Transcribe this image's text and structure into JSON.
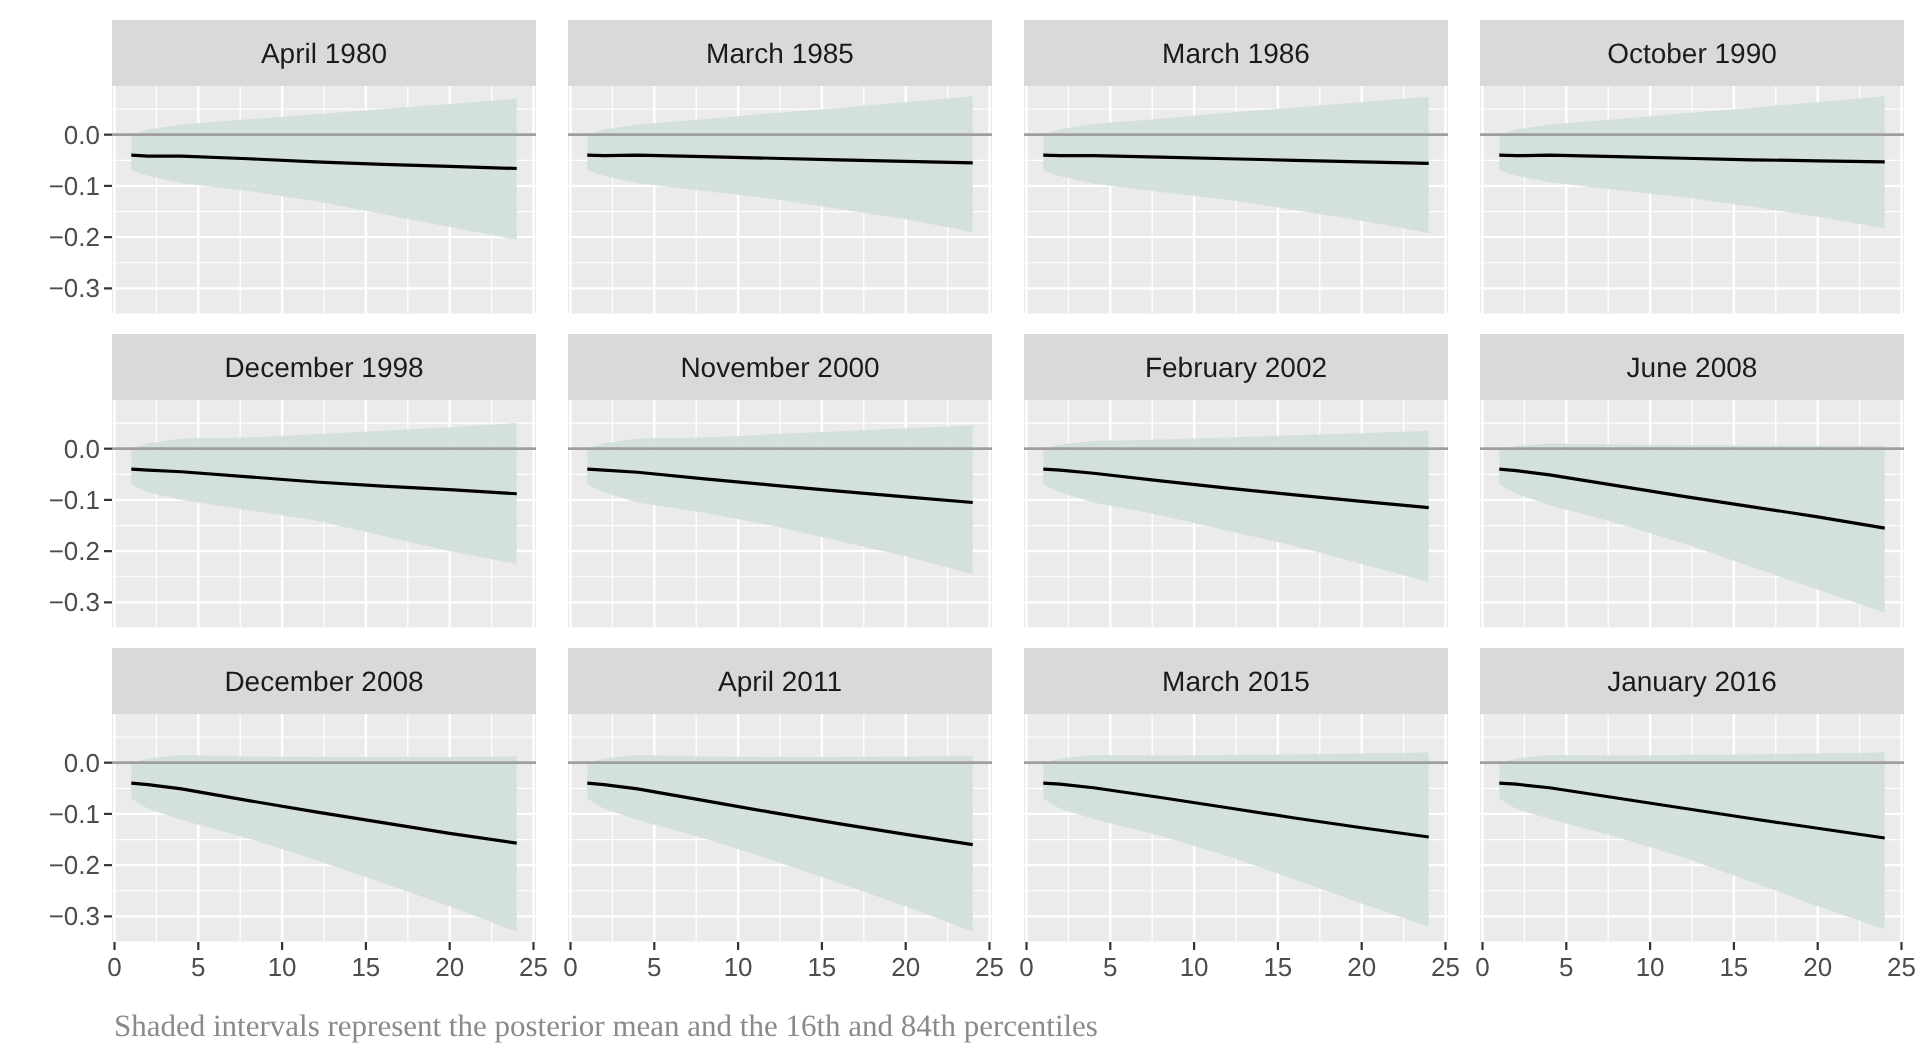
{
  "chart_data": [
    {
      "type": "line",
      "title": "April 1980",
      "x": [
        1,
        2,
        4,
        8,
        12,
        16,
        20,
        24
      ],
      "xlim": [
        -0.15,
        25.15
      ],
      "ylim": [
        -0.35,
        0.095
      ],
      "xticks": [
        0,
        5,
        10,
        15,
        20,
        25
      ],
      "yticks": [
        {
          "value": 0,
          "label": "0.0"
        },
        {
          "value": -0.1,
          "label": "−0.1"
        },
        {
          "value": -0.2,
          "label": "−0.2"
        },
        {
          "value": -0.3,
          "label": "−0.3"
        }
      ],
      "grid": true,
      "tick_labels": "y",
      "ref_lines": [
        {
          "axis": "y",
          "value": 0,
          "color": "#9e9e9e"
        }
      ],
      "annotations": [
        "Shaded intervals represent the posterior mean and the 16th and 84th percentiles"
      ],
      "series": [
        {
          "color": "#000000",
          "values": [
            -0.04,
            -0.042,
            -0.042,
            -0.047,
            -0.053,
            -0.058,
            -0.062,
            -0.066
          ],
          "lower": [
            -0.07,
            -0.08,
            -0.095,
            -0.11,
            -0.13,
            -0.155,
            -0.18,
            -0.205
          ],
          "upper": [
            0,
            0.01,
            0.02,
            0.03,
            0.04,
            0.05,
            0.06,
            0.07
          ]
        }
      ]
    },
    {
      "type": "line",
      "title": "March 1985",
      "x": [
        1,
        2,
        4,
        8,
        12,
        16,
        20,
        24
      ],
      "xlim": [
        -0.15,
        25.15
      ],
      "ylim": [
        -0.35,
        0.095
      ],
      "xticks": [
        0,
        5,
        10,
        15,
        20,
        25
      ],
      "yticks": [
        0,
        -0.1,
        -0.2,
        -0.3
      ],
      "grid": true,
      "tick_labels": false,
      "ref_lines": [
        {
          "axis": "y",
          "value": 0,
          "color": "#9e9e9e"
        }
      ],
      "series": [
        {
          "color": "#000000",
          "values": [
            -0.04,
            -0.041,
            -0.04,
            -0.043,
            -0.046,
            -0.049,
            -0.052,
            -0.055
          ],
          "lower": [
            -0.07,
            -0.08,
            -0.095,
            -0.11,
            -0.125,
            -0.145,
            -0.165,
            -0.19
          ],
          "upper": [
            0,
            0.01,
            0.02,
            0.03,
            0.042,
            0.052,
            0.064,
            0.075
          ]
        }
      ]
    },
    {
      "type": "line",
      "title": "March 1986",
      "x": [
        1,
        2,
        4,
        8,
        12,
        16,
        20,
        24
      ],
      "xlim": [
        -0.15,
        25.15
      ],
      "ylim": [
        -0.35,
        0.095
      ],
      "xticks": [
        0,
        5,
        10,
        15,
        20,
        25
      ],
      "yticks": [
        0,
        -0.1,
        -0.2,
        -0.3
      ],
      "grid": true,
      "tick_labels": false,
      "ref_lines": [
        {
          "axis": "y",
          "value": 0,
          "color": "#9e9e9e"
        }
      ],
      "series": [
        {
          "color": "#000000",
          "values": [
            -0.04,
            -0.041,
            -0.041,
            -0.044,
            -0.047,
            -0.05,
            -0.053,
            -0.056
          ],
          "lower": [
            -0.07,
            -0.081,
            -0.096,
            -0.112,
            -0.127,
            -0.147,
            -0.168,
            -0.192
          ],
          "upper": [
            0,
            0.011,
            0.021,
            0.031,
            0.043,
            0.053,
            0.064,
            0.074
          ]
        }
      ]
    },
    {
      "type": "line",
      "title": "October 1990",
      "x": [
        1,
        2,
        4,
        8,
        12,
        16,
        20,
        24
      ],
      "xlim": [
        -0.15,
        25.15
      ],
      "ylim": [
        -0.35,
        0.095
      ],
      "xticks": [
        0,
        5,
        10,
        15,
        20,
        25
      ],
      "yticks": [
        0,
        -0.1,
        -0.2,
        -0.3
      ],
      "grid": true,
      "tick_labels": false,
      "ref_lines": [
        {
          "axis": "y",
          "value": 0,
          "color": "#9e9e9e"
        }
      ],
      "series": [
        {
          "color": "#000000",
          "values": [
            -0.04,
            -0.041,
            -0.04,
            -0.043,
            -0.046,
            -0.049,
            -0.051,
            -0.053
          ],
          "lower": [
            -0.07,
            -0.08,
            -0.093,
            -0.108,
            -0.122,
            -0.14,
            -0.16,
            -0.183
          ],
          "upper": [
            0,
            0.01,
            0.02,
            0.03,
            0.042,
            0.052,
            0.064,
            0.075
          ]
        }
      ]
    },
    {
      "type": "line",
      "title": "December 1998",
      "x": [
        1,
        2,
        4,
        8,
        12,
        16,
        20,
        24
      ],
      "xlim": [
        -0.15,
        25.15
      ],
      "ylim": [
        -0.35,
        0.095
      ],
      "xticks": [
        0,
        5,
        10,
        15,
        20,
        25
      ],
      "yticks": [
        {
          "value": 0,
          "label": "0.0"
        },
        {
          "value": -0.1,
          "label": "−0.1"
        },
        {
          "value": -0.2,
          "label": "−0.2"
        },
        {
          "value": -0.3,
          "label": "−0.3"
        }
      ],
      "grid": true,
      "tick_labels": "y",
      "ref_lines": [
        {
          "axis": "y",
          "value": 0,
          "color": "#9e9e9e"
        }
      ],
      "series": [
        {
          "color": "#000000",
          "values": [
            -0.04,
            -0.042,
            -0.045,
            -0.055,
            -0.065,
            -0.073,
            -0.08,
            -0.088
          ],
          "lower": [
            -0.07,
            -0.085,
            -0.1,
            -0.12,
            -0.14,
            -0.17,
            -0.2,
            -0.225
          ],
          "upper": [
            0,
            0.01,
            0.02,
            0.022,
            0.028,
            0.035,
            0.042,
            0.05
          ]
        }
      ]
    },
    {
      "type": "line",
      "title": "November 2000",
      "x": [
        1,
        2,
        4,
        8,
        12,
        16,
        20,
        24
      ],
      "xlim": [
        -0.15,
        25.15
      ],
      "ylim": [
        -0.35,
        0.095
      ],
      "xticks": [
        0,
        5,
        10,
        15,
        20,
        25
      ],
      "yticks": [
        0,
        -0.1,
        -0.2,
        -0.3
      ],
      "grid": true,
      "tick_labels": false,
      "ref_lines": [
        {
          "axis": "y",
          "value": 0,
          "color": "#9e9e9e"
        }
      ],
      "series": [
        {
          "color": "#000000",
          "values": [
            -0.04,
            -0.042,
            -0.046,
            -0.059,
            -0.071,
            -0.083,
            -0.094,
            -0.105
          ],
          "lower": [
            -0.07,
            -0.085,
            -0.105,
            -0.125,
            -0.15,
            -0.18,
            -0.21,
            -0.245
          ],
          "upper": [
            0,
            0.01,
            0.02,
            0.022,
            0.028,
            0.034,
            0.04,
            0.045
          ]
        }
      ]
    },
    {
      "type": "line",
      "title": "February 2002",
      "x": [
        1,
        2,
        4,
        8,
        12,
        16,
        20,
        24
      ],
      "xlim": [
        -0.15,
        25.15
      ],
      "ylim": [
        -0.35,
        0.095
      ],
      "xticks": [
        0,
        5,
        10,
        15,
        20,
        25
      ],
      "yticks": [
        0,
        -0.1,
        -0.2,
        -0.3
      ],
      "grid": true,
      "tick_labels": false,
      "ref_lines": [
        {
          "axis": "y",
          "value": 0,
          "color": "#9e9e9e"
        }
      ],
      "series": [
        {
          "color": "#000000",
          "values": [
            -0.04,
            -0.042,
            -0.048,
            -0.063,
            -0.077,
            -0.09,
            -0.103,
            -0.115
          ],
          "lower": [
            -0.07,
            -0.085,
            -0.105,
            -0.13,
            -0.16,
            -0.19,
            -0.225,
            -0.26
          ],
          "upper": [
            0,
            0.008,
            0.015,
            0.018,
            0.022,
            0.026,
            0.03,
            0.035
          ]
        }
      ]
    },
    {
      "type": "line",
      "title": "June 2008",
      "x": [
        1,
        2,
        4,
        8,
        12,
        16,
        20,
        24
      ],
      "xlim": [
        -0.15,
        25.15
      ],
      "ylim": [
        -0.35,
        0.095
      ],
      "xticks": [
        0,
        5,
        10,
        15,
        20,
        25
      ],
      "yticks": [
        0,
        -0.1,
        -0.2,
        -0.3
      ],
      "grid": true,
      "tick_labels": false,
      "ref_lines": [
        {
          "axis": "y",
          "value": 0,
          "color": "#9e9e9e"
        }
      ],
      "series": [
        {
          "color": "#000000",
          "values": [
            -0.04,
            -0.043,
            -0.051,
            -0.072,
            -0.093,
            -0.113,
            -0.133,
            -0.155
          ],
          "lower": [
            -0.07,
            -0.088,
            -0.11,
            -0.145,
            -0.185,
            -0.23,
            -0.275,
            -0.32
          ],
          "upper": [
            -0.005,
            0.005,
            0.01,
            0.008,
            0.007,
            0.006,
            0.006,
            0.005
          ]
        }
      ]
    },
    {
      "type": "line",
      "title": "December 2008",
      "x": [
        1,
        2,
        4,
        8,
        12,
        16,
        20,
        24
      ],
      "xlim": [
        -0.15,
        25.15
      ],
      "ylim": [
        -0.35,
        0.095
      ],
      "xticks": [
        0,
        5,
        10,
        15,
        20,
        25
      ],
      "yticks": [
        {
          "value": 0,
          "label": "0.0"
        },
        {
          "value": -0.1,
          "label": "−0.1"
        },
        {
          "value": -0.2,
          "label": "−0.2"
        },
        {
          "value": -0.3,
          "label": "−0.3"
        }
      ],
      "grid": true,
      "ref_lines": [
        {
          "axis": "y",
          "value": 0,
          "color": "#9e9e9e"
        }
      ],
      "series": [
        {
          "color": "#000000",
          "values": [
            -0.04,
            -0.043,
            -0.051,
            -0.074,
            -0.096,
            -0.117,
            -0.138,
            -0.157
          ],
          "lower": [
            -0.07,
            -0.09,
            -0.112,
            -0.148,
            -0.19,
            -0.235,
            -0.28,
            -0.33
          ],
          "upper": [
            0,
            0.008,
            0.015,
            0.012,
            0.011,
            0.011,
            0.011,
            0.012
          ]
        }
      ]
    },
    {
      "type": "line",
      "title": "April 2011",
      "x": [
        1,
        2,
        4,
        8,
        12,
        16,
        20,
        24
      ],
      "xlim": [
        -0.15,
        25.15
      ],
      "ylim": [
        -0.35,
        0.095
      ],
      "xticks": [
        0,
        5,
        10,
        15,
        20,
        25
      ],
      "yticks": [
        0,
        -0.1,
        -0.2,
        -0.3
      ],
      "grid": true,
      "tick_labels": "x",
      "ref_lines": [
        {
          "axis": "y",
          "value": 0,
          "color": "#9e9e9e"
        }
      ],
      "series": [
        {
          "color": "#000000",
          "values": [
            -0.04,
            -0.043,
            -0.051,
            -0.074,
            -0.097,
            -0.119,
            -0.14,
            -0.16
          ],
          "lower": [
            -0.07,
            -0.09,
            -0.112,
            -0.148,
            -0.19,
            -0.235,
            -0.28,
            -0.33
          ],
          "upper": [
            0,
            0.008,
            0.015,
            0.012,
            0.011,
            0.011,
            0.012,
            0.013
          ]
        }
      ]
    },
    {
      "type": "line",
      "title": "March 2015",
      "x": [
        1,
        2,
        4,
        8,
        12,
        16,
        20,
        24
      ],
      "xlim": [
        -0.15,
        25.15
      ],
      "ylim": [
        -0.35,
        0.095
      ],
      "xticks": [
        0,
        5,
        10,
        15,
        20,
        25
      ],
      "yticks": [
        0,
        -0.1,
        -0.2,
        -0.3
      ],
      "grid": true,
      "tick_labels": "x",
      "ref_lines": [
        {
          "axis": "y",
          "value": 0,
          "color": "#9e9e9e"
        }
      ],
      "series": [
        {
          "color": "#000000",
          "values": [
            -0.04,
            -0.042,
            -0.049,
            -0.068,
            -0.088,
            -0.108,
            -0.127,
            -0.145
          ],
          "lower": [
            -0.07,
            -0.09,
            -0.11,
            -0.143,
            -0.182,
            -0.228,
            -0.275,
            -0.32
          ],
          "upper": [
            0,
            0.008,
            0.015,
            0.014,
            0.015,
            0.016,
            0.018,
            0.02
          ]
        }
      ]
    },
    {
      "type": "line",
      "title": "January 2016",
      "x": [
        1,
        2,
        4,
        8,
        12,
        16,
        20,
        24
      ],
      "xlim": [
        -0.15,
        25.15
      ],
      "ylim": [
        -0.35,
        0.095
      ],
      "xticks": [
        0,
        5,
        10,
        15,
        20,
        25
      ],
      "yticks": [
        0,
        -0.1,
        -0.2,
        -0.3
      ],
      "grid": true,
      "tick_labels": "x",
      "ref_lines": [
        {
          "axis": "y",
          "value": 0,
          "color": "#9e9e9e"
        }
      ],
      "series": [
        {
          "color": "#000000",
          "values": [
            -0.04,
            -0.042,
            -0.049,
            -0.069,
            -0.089,
            -0.109,
            -0.128,
            -0.147
          ],
          "lower": [
            -0.07,
            -0.09,
            -0.11,
            -0.145,
            -0.185,
            -0.232,
            -0.28,
            -0.325
          ],
          "upper": [
            0,
            0.008,
            0.015,
            0.014,
            0.015,
            0.016,
            0.018,
            0.02
          ]
        }
      ]
    }
  ]
}
